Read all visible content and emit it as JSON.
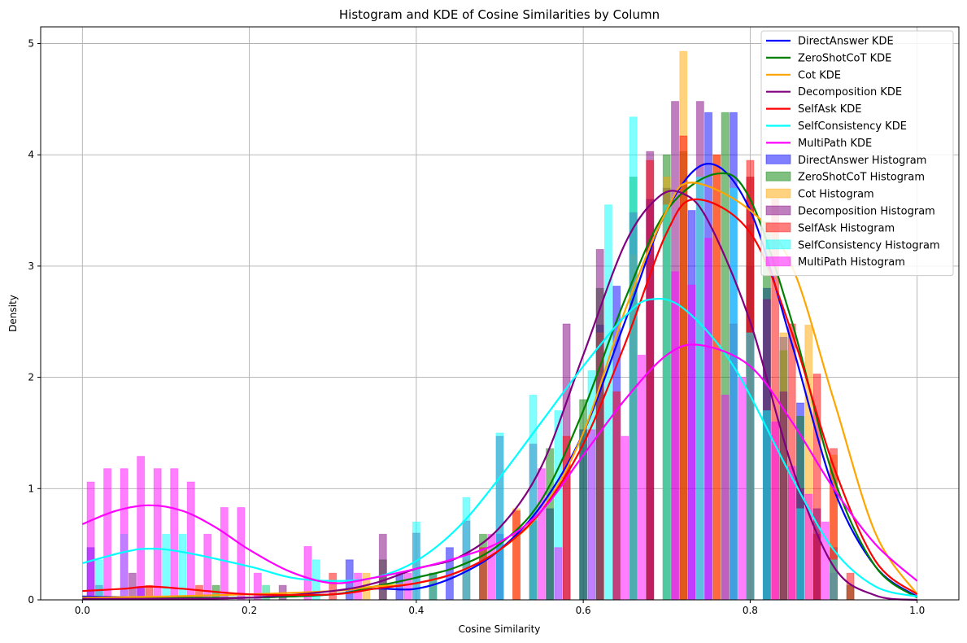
{
  "chart_data": {
    "type": "bar",
    "title": "Histogram and KDE of Cosine Similarities by Column",
    "xlabel": "Cosine Similarity",
    "ylabel": "Density",
    "xlim": [
      -0.05,
      1.05
    ],
    "ylim": [
      0,
      5.15
    ],
    "xticks": [
      0.0,
      0.2,
      0.4,
      0.6,
      0.8,
      1.0
    ],
    "xtick_labels": [
      "0.0",
      "0.2",
      "0.4",
      "0.6",
      "0.8",
      "1.0"
    ],
    "yticks": [
      0,
      1,
      2,
      3,
      4,
      5
    ],
    "ytick_labels": [
      "0",
      "1",
      "2",
      "3",
      "4",
      "5"
    ],
    "grid": true,
    "legend_position": "top-right",
    "kde_series": [
      {
        "name": "DirectAnswer KDE",
        "color": "#0000ff",
        "x": [
          0,
          0.1,
          0.2,
          0.3,
          0.35,
          0.4,
          0.45,
          0.5,
          0.55,
          0.6,
          0.65,
          0.7,
          0.75,
          0.8,
          0.85,
          0.9,
          0.95,
          1.0
        ],
        "y": [
          0.03,
          0.02,
          0.02,
          0.05,
          0.1,
          0.1,
          0.22,
          0.45,
          0.85,
          1.5,
          2.5,
          3.5,
          3.92,
          3.5,
          2.3,
          1.0,
          0.3,
          0.03
        ]
      },
      {
        "name": "ZeroShotCoT KDE",
        "color": "#008000",
        "x": [
          0,
          0.1,
          0.2,
          0.3,
          0.35,
          0.4,
          0.45,
          0.5,
          0.55,
          0.6,
          0.65,
          0.7,
          0.76,
          0.8,
          0.85,
          0.9,
          0.95,
          1.0
        ],
        "y": [
          0.02,
          0.02,
          0.02,
          0.05,
          0.12,
          0.2,
          0.3,
          0.5,
          0.9,
          1.7,
          2.7,
          3.5,
          3.83,
          3.6,
          2.5,
          1.1,
          0.3,
          0.02
        ]
      },
      {
        "name": "Cot KDE",
        "color": "#ffa500",
        "x": [
          0,
          0.1,
          0.2,
          0.3,
          0.35,
          0.4,
          0.45,
          0.5,
          0.55,
          0.6,
          0.65,
          0.7,
          0.73,
          0.8,
          0.85,
          0.9,
          0.95,
          1.0
        ],
        "y": [
          0.02,
          0.03,
          0.05,
          0.08,
          0.12,
          0.15,
          0.25,
          0.45,
          0.8,
          1.5,
          2.6,
          3.5,
          3.75,
          3.5,
          3.0,
          1.8,
          0.6,
          0.05
        ]
      },
      {
        "name": "Decomposition KDE",
        "color": "#800080",
        "x": [
          0,
          0.1,
          0.2,
          0.3,
          0.35,
          0.4,
          0.45,
          0.5,
          0.55,
          0.6,
          0.65,
          0.69,
          0.72,
          0.75,
          0.8,
          0.85,
          0.9,
          0.95,
          1.0
        ],
        "y": [
          0.01,
          0.01,
          0.02,
          0.08,
          0.15,
          0.28,
          0.38,
          0.65,
          1.2,
          2.2,
          3.2,
          3.62,
          3.65,
          3.4,
          2.5,
          1.2,
          0.3,
          0.04,
          0.0
        ]
      },
      {
        "name": "SelfAsk KDE",
        "color": "#ff0000",
        "x": [
          0,
          0.05,
          0.08,
          0.12,
          0.2,
          0.3,
          0.35,
          0.4,
          0.45,
          0.5,
          0.55,
          0.6,
          0.65,
          0.7,
          0.735,
          0.8,
          0.85,
          0.9,
          0.95,
          1.0
        ],
        "y": [
          0.08,
          0.1,
          0.12,
          0.1,
          0.05,
          0.05,
          0.1,
          0.15,
          0.25,
          0.45,
          0.8,
          1.4,
          2.3,
          3.3,
          3.6,
          3.3,
          2.4,
          1.2,
          0.35,
          0.05
        ]
      },
      {
        "name": "SelfConsistency KDE",
        "color": "#00ffff",
        "x": [
          0,
          0.05,
          0.08,
          0.12,
          0.2,
          0.25,
          0.3,
          0.35,
          0.4,
          0.45,
          0.5,
          0.55,
          0.6,
          0.65,
          0.68,
          0.72,
          0.78,
          0.85,
          0.9,
          0.95,
          1.0
        ],
        "y": [
          0.33,
          0.43,
          0.46,
          0.43,
          0.3,
          0.2,
          0.17,
          0.2,
          0.35,
          0.65,
          1.1,
          1.6,
          2.1,
          2.55,
          2.7,
          2.62,
          2.1,
          1.1,
          0.45,
          0.12,
          0.03
        ]
      },
      {
        "name": "MultiPath KDE",
        "color": "#ff00ff",
        "x": [
          0,
          0.04,
          0.08,
          0.12,
          0.16,
          0.2,
          0.25,
          0.3,
          0.35,
          0.4,
          0.45,
          0.5,
          0.55,
          0.6,
          0.65,
          0.7,
          0.74,
          0.8,
          0.85,
          0.9,
          0.95,
          1.0
        ],
        "y": [
          0.68,
          0.8,
          0.85,
          0.8,
          0.65,
          0.45,
          0.25,
          0.15,
          0.2,
          0.28,
          0.38,
          0.52,
          0.8,
          1.3,
          1.8,
          2.2,
          2.29,
          2.1,
          1.6,
          1.0,
          0.5,
          0.17
        ]
      }
    ],
    "hist_series": [
      {
        "name": "DirectAnswer Histogram",
        "color": "#0000ff",
        "bins": [
          [
            0.01,
            0.47
          ],
          [
            0.07,
            0.12
          ],
          [
            0.32,
            0.36
          ],
          [
            0.38,
            0.24
          ],
          [
            0.44,
            0.47
          ],
          [
            0.5,
            0.59
          ],
          [
            0.56,
            0.82
          ],
          [
            0.6,
            1.53
          ],
          [
            0.62,
            2.47
          ],
          [
            0.64,
            2.82
          ],
          [
            0.68,
            3.6
          ],
          [
            0.7,
            3.7
          ],
          [
            0.73,
            3.5
          ],
          [
            0.75,
            4.38
          ],
          [
            0.78,
            4.38
          ],
          [
            0.8,
            3.0
          ],
          [
            0.82,
            2.8
          ],
          [
            0.84,
            2.36
          ],
          [
            0.86,
            1.77
          ],
          [
            0.88,
            0.82
          ],
          [
            0.9,
            0.47
          ]
        ]
      },
      {
        "name": "ZeroShotCoT Histogram",
        "color": "#008000",
        "bins": [
          [
            0.16,
            0.13
          ],
          [
            0.36,
            0.36
          ],
          [
            0.42,
            0.24
          ],
          [
            0.48,
            0.59
          ],
          [
            0.54,
            0.71
          ],
          [
            0.56,
            1.36
          ],
          [
            0.6,
            1.8
          ],
          [
            0.62,
            2.8
          ],
          [
            0.66,
            3.8
          ],
          [
            0.7,
            4.0
          ],
          [
            0.72,
            4.03
          ],
          [
            0.77,
            4.38
          ],
          [
            0.8,
            3.37
          ],
          [
            0.82,
            3.4
          ],
          [
            0.84,
            2.24
          ],
          [
            0.86,
            1.65
          ],
          [
            0.9,
            0.36
          ],
          [
            0.92,
            0.13
          ]
        ]
      },
      {
        "name": "Cot Histogram",
        "color": "#ffa500",
        "bins": [
          [
            0.22,
            0.13
          ],
          [
            0.34,
            0.24
          ],
          [
            0.46,
            0.36
          ],
          [
            0.52,
            0.82
          ],
          [
            0.62,
            2.4
          ],
          [
            0.66,
            3.1
          ],
          [
            0.7,
            3.8
          ],
          [
            0.72,
            4.93
          ],
          [
            0.76,
            4.0
          ],
          [
            0.8,
            3.8
          ],
          [
            0.84,
            2.4
          ],
          [
            0.87,
            2.47
          ],
          [
            0.9,
            1.3
          ]
        ]
      },
      {
        "name": "Decomposition Histogram",
        "color": "#800080",
        "bins": [
          [
            0.02,
            0.13
          ],
          [
            0.06,
            0.24
          ],
          [
            0.24,
            0.13
          ],
          [
            0.36,
            0.59
          ],
          [
            0.4,
            0.6
          ],
          [
            0.46,
            0.71
          ],
          [
            0.5,
            1.47
          ],
          [
            0.54,
            1.4
          ],
          [
            0.58,
            2.48
          ],
          [
            0.62,
            3.15
          ],
          [
            0.66,
            3.48
          ],
          [
            0.68,
            4.03
          ],
          [
            0.71,
            4.48
          ],
          [
            0.74,
            4.48
          ],
          [
            0.78,
            2.48
          ],
          [
            0.8,
            3.8
          ],
          [
            0.82,
            2.7
          ],
          [
            0.84,
            1.87
          ],
          [
            0.86,
            1.0
          ],
          [
            0.88,
            0.59
          ],
          [
            0.9,
            0.24
          ]
        ]
      },
      {
        "name": "SelfAsk Histogram",
        "color": "#ff0000",
        "bins": [
          [
            0.08,
            0.13
          ],
          [
            0.14,
            0.13
          ],
          [
            0.3,
            0.24
          ],
          [
            0.42,
            0.24
          ],
          [
            0.48,
            0.47
          ],
          [
            0.52,
            0.8
          ],
          [
            0.58,
            1.47
          ],
          [
            0.64,
            1.87
          ],
          [
            0.68,
            3.95
          ],
          [
            0.72,
            4.17
          ],
          [
            0.76,
            4.0
          ],
          [
            0.8,
            3.95
          ],
          [
            0.83,
            3.6
          ],
          [
            0.85,
            2.48
          ],
          [
            0.88,
            2.03
          ],
          [
            0.9,
            1.36
          ],
          [
            0.92,
            0.24
          ]
        ]
      },
      {
        "name": "SelfConsistency Histogram",
        "color": "#00ffff",
        "bins": [
          [
            0.02,
            0.36
          ],
          [
            0.05,
            0.59
          ],
          [
            0.1,
            0.59
          ],
          [
            0.12,
            0.59
          ],
          [
            0.22,
            0.13
          ],
          [
            0.28,
            0.36
          ],
          [
            0.4,
            0.7
          ],
          [
            0.42,
            0.24
          ],
          [
            0.46,
            0.92
          ],
          [
            0.5,
            1.5
          ],
          [
            0.54,
            1.84
          ],
          [
            0.57,
            1.7
          ],
          [
            0.61,
            2.06
          ],
          [
            0.63,
            3.55
          ],
          [
            0.66,
            4.34
          ],
          [
            0.7,
            3.55
          ],
          [
            0.74,
            3.8
          ],
          [
            0.78,
            3.7
          ],
          [
            0.8,
            2.4
          ],
          [
            0.82,
            1.7
          ],
          [
            0.86,
            0.82
          ],
          [
            0.9,
            0.36
          ]
        ]
      },
      {
        "name": "MultiPath Histogram",
        "color": "#ff00ff",
        "bins": [
          [
            0.01,
            1.06
          ],
          [
            0.03,
            1.18
          ],
          [
            0.05,
            1.18
          ],
          [
            0.07,
            1.29
          ],
          [
            0.09,
            1.18
          ],
          [
            0.11,
            1.18
          ],
          [
            0.13,
            1.06
          ],
          [
            0.15,
            0.59
          ],
          [
            0.17,
            0.83
          ],
          [
            0.19,
            0.83
          ],
          [
            0.21,
            0.24
          ],
          [
            0.27,
            0.48
          ],
          [
            0.33,
            0.24
          ],
          [
            0.39,
            0.24
          ],
          [
            0.49,
            0.59
          ],
          [
            0.55,
            1.18
          ],
          [
            0.57,
            0.47
          ],
          [
            0.61,
            1.53
          ],
          [
            0.65,
            1.47
          ],
          [
            0.67,
            2.2
          ],
          [
            0.71,
            2.95
          ],
          [
            0.73,
            2.83
          ],
          [
            0.75,
            3.25
          ],
          [
            0.77,
            1.84
          ],
          [
            0.79,
            2.0
          ],
          [
            0.83,
            1.6
          ],
          [
            0.85,
            1.2
          ],
          [
            0.87,
            0.95
          ],
          [
            0.89,
            0.7
          ]
        ]
      }
    ]
  }
}
